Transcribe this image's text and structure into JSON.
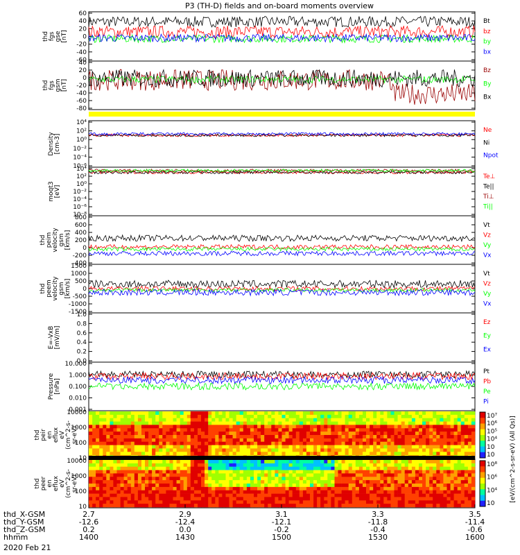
{
  "title": "P3 (TH-D) fields and on-board moments overview",
  "colors": {
    "black": "#000000",
    "red": "#ff0000",
    "green": "#00ff00",
    "blue": "#0000ff",
    "darkred": "#990000",
    "yellow": "#ffff00"
  },
  "chart_data": [
    {
      "type": "line",
      "panel": "fgs_gse",
      "ylabel": [
        "thd",
        "fgs",
        "gse",
        "[nT]"
      ],
      "ylim": [
        -60,
        60
      ],
      "ticks": [
        "60",
        "40",
        "20",
        "0",
        "-20",
        "-40",
        "-60"
      ],
      "series": [
        {
          "name": "Bt",
          "color": "black",
          "level": 38,
          "amp": 14
        },
        {
          "name": "bz",
          "color": "red",
          "level": 12,
          "amp": 16
        },
        {
          "name": "by",
          "color": "green",
          "level": -6,
          "amp": 10
        },
        {
          "name": "bx",
          "color": "blue",
          "level": -4,
          "amp": 10
        }
      ]
    },
    {
      "type": "line",
      "panel": "fgs_gsm",
      "ylabel": [
        "thd",
        "fgs",
        "gsm",
        "[nT]"
      ],
      "ylim": [
        -90,
        40
      ],
      "ticks": [
        "40",
        "20",
        "0",
        "-20",
        "-40",
        "-60",
        "-80"
      ],
      "series": [
        {
          "name": "Bz",
          "color": "darkred",
          "level": -10,
          "amp": 30
        },
        {
          "name": "By",
          "color": "green",
          "level": -8,
          "amp": 10
        },
        {
          "name": "Bx",
          "color": "black",
          "level": -5,
          "amp": 25
        }
      ]
    },
    {
      "type": "line",
      "panel": "density",
      "ylabel": [
        "Density",
        "[cm-3]"
      ],
      "log": true,
      "ticks": [
        "10⁴",
        "10²",
        "10⁰",
        "10⁻²",
        "10⁻⁴",
        "10⁻⁶"
      ],
      "series": [
        {
          "name": "Ne",
          "color": "red",
          "level": "1e1"
        },
        {
          "name": "Ni",
          "color": "black",
          "level": "1e1"
        },
        {
          "name": "Npot",
          "color": "blue",
          "level": "2e1"
        }
      ]
    },
    {
      "type": "line",
      "panel": "temperature",
      "ylabel": [
        "moqt3",
        "[eV]"
      ],
      "log": true,
      "ticks": [
        "10⁴",
        "10²",
        "10⁰",
        "10⁻²",
        "10⁻⁴",
        "10⁻⁶",
        "10⁻⁸"
      ],
      "series": [
        {
          "name": "Te⊥",
          "color": "red",
          "level": "1e3"
        },
        {
          "name": "Te||",
          "color": "black",
          "level": "1e3"
        },
        {
          "name": "Ti⊥",
          "color": "darkred",
          "level": "3e3"
        },
        {
          "name": "Ti||",
          "color": "green",
          "level": "3e3"
        }
      ]
    },
    {
      "type": "line",
      "panel": "peim_velocity",
      "ylabel": [
        "thd",
        "peim",
        "velocity",
        "gsm",
        "[km/s]"
      ],
      "ylim": [
        -400,
        800
      ],
      "ticks": [
        "800",
        "600",
        "400",
        "200",
        "0",
        "-200",
        "-400"
      ],
      "series": [
        {
          "name": "Vt",
          "color": "black",
          "level": 250,
          "amp": 80
        },
        {
          "name": "Vz",
          "color": "red",
          "level": 20,
          "amp": 60
        },
        {
          "name": "Vy",
          "color": "green",
          "level": -40,
          "amp": 50
        },
        {
          "name": "Vx",
          "color": "blue",
          "level": -150,
          "amp": 60
        }
      ]
    },
    {
      "type": "line",
      "panel": "peem_velocity",
      "ylabel": [
        "thd",
        "peem",
        "velocity",
        "gsm",
        "[km/s]"
      ],
      "ylim": [
        -1500,
        1500
      ],
      "ticks": [
        "1500",
        "1000",
        "500",
        "0",
        "-500",
        "-1000",
        "-1500"
      ],
      "series": [
        {
          "name": "Vt",
          "color": "black",
          "level": 300,
          "amp": 250
        },
        {
          "name": "Vz",
          "color": "red",
          "level": 0,
          "amp": 150
        },
        {
          "name": "Vy",
          "color": "green",
          "level": -100,
          "amp": 120
        },
        {
          "name": "Vx",
          "color": "blue",
          "level": -250,
          "amp": 200
        }
      ]
    },
    {
      "type": "line",
      "panel": "efield",
      "ylabel": [
        "E=-VxB",
        "[mV/m]"
      ],
      "ylim": [
        0,
        1
      ],
      "ticks": [
        "1.0",
        "0.8",
        "0.6",
        "0.4",
        "0.2",
        "0.0"
      ],
      "series": [
        {
          "name": "Ez",
          "color": "red"
        },
        {
          "name": "Ey",
          "color": "green"
        },
        {
          "name": "Ex",
          "color": "blue"
        }
      ]
    },
    {
      "type": "line",
      "panel": "pressure",
      "ylabel": [
        "Pressure",
        "[nPa]"
      ],
      "log": true,
      "ticks": [
        "10.000",
        "1.000",
        "0.100",
        "0.010",
        "0.001"
      ],
      "series": [
        {
          "name": "Pt",
          "color": "black",
          "level": 1.1
        },
        {
          "name": "Pb",
          "color": "red",
          "level": 0.8
        },
        {
          "name": "Pe",
          "color": "green",
          "level": 0.1
        },
        {
          "name": "Pi",
          "color": "blue",
          "level": 0.35
        }
      ]
    },
    {
      "type": "heatmap",
      "panel": "peir_eflux",
      "ylabel": [
        "thd",
        "peir",
        "en",
        "eflux",
        "eV",
        "(cm^2-s-",
        "sr-eV)"
      ],
      "log": true,
      "ticks": [
        "10000",
        "1000",
        "100",
        "10"
      ],
      "colorbar": {
        "ticks": [
          "10⁷",
          "10⁶",
          "10⁵",
          "10⁴",
          "10⁳",
          "10⁲"
        ],
        "label": "[eV/(cm^2-s-sr-eV) (All Qs)]"
      }
    },
    {
      "type": "heatmap",
      "panel": "peer_eflux",
      "ylabel": [
        "thd",
        "peer",
        "en",
        "eflux",
        "eV",
        "(cm^2-s-",
        "sr-eV)"
      ],
      "log": true,
      "ticks": [
        "10000",
        "1000",
        "100",
        "10"
      ],
      "colorbar": {
        "ticks": [
          "10⁸",
          "10⁶",
          "10⁴",
          "10⁲"
        ],
        "label": ""
      }
    }
  ],
  "x_axis": {
    "rows": [
      {
        "name": "thd_X-GSM",
        "values": [
          "2.7",
          "2.9",
          "3.1",
          "3.3",
          "3.5"
        ]
      },
      {
        "name": "thd_Y-GSM",
        "values": [
          "-12.6",
          "-12.4",
          "-12.1",
          "-11.8",
          "-11.4"
        ]
      },
      {
        "name": "thd_Z-GSM",
        "values": [
          "0.2",
          "0.0",
          "-0.2",
          "-0.4",
          "-0.6"
        ]
      },
      {
        "name": "hhmm",
        "values": [
          "1400",
          "1430",
          "1500",
          "1530",
          "1600"
        ]
      }
    ],
    "date": "2020 Feb 21"
  }
}
